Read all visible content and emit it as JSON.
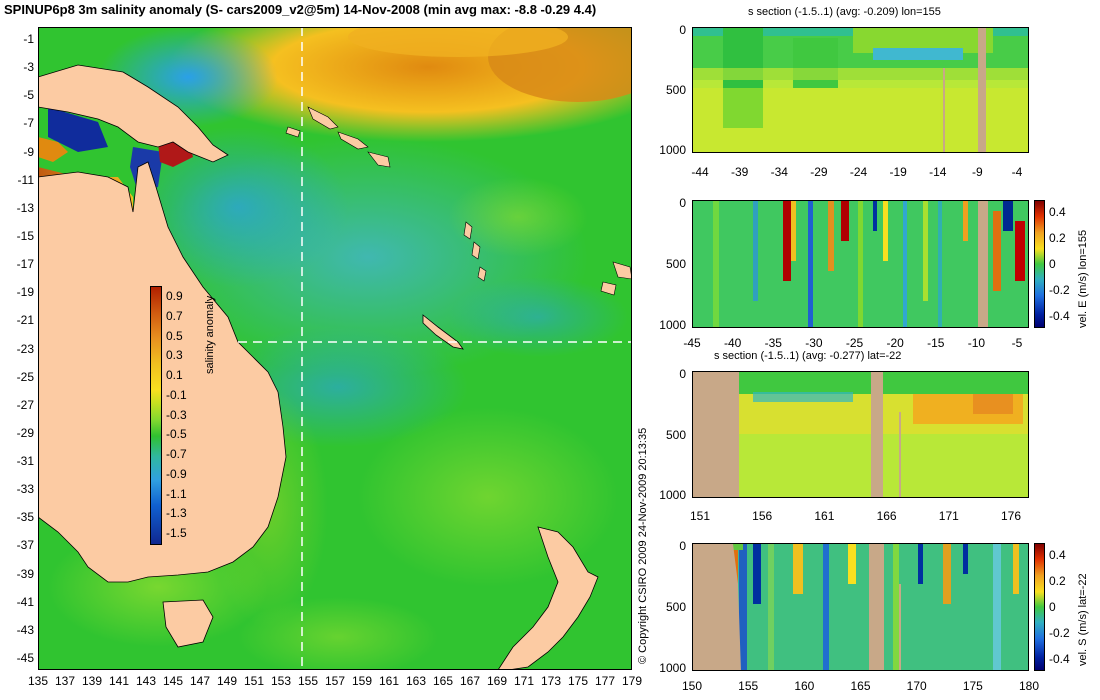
{
  "main": {
    "title": "SPINUP6p8 3m salinity anomaly (S- cars2009_v2@5m) 14-Nov-2008 (min avg max: -8.8 -0.29 4.4)",
    "copyright": "© Copyright CSIRO 2009   24-Nov-2009 20:13:35",
    "lat_ticks": [
      "-1",
      "-3",
      "-5",
      "-7",
      "-9",
      "-11",
      "-13",
      "-15",
      "-17",
      "-19",
      "-21",
      "-23",
      "-25",
      "-27",
      "-29",
      "-31",
      "-33",
      "-35",
      "-37",
      "-39",
      "-41",
      "-43",
      "-45"
    ],
    "lon_ticks": [
      "135",
      "137",
      "139",
      "141",
      "143",
      "145",
      "147",
      "149",
      "151",
      "153",
      "155",
      "157",
      "159",
      "161",
      "163",
      "165",
      "167",
      "169",
      "171",
      "173",
      "175",
      "177",
      "179"
    ],
    "colorbar": {
      "label": "salinity anomaly",
      "ticks": [
        "0.9",
        "0.7",
        "0.5",
        "0.3",
        "0.1",
        "-0.1",
        "-0.3",
        "-0.5",
        "-0.7",
        "-0.9",
        "-1.1",
        "-1.3",
        "-1.5"
      ]
    },
    "section_lines": {
      "lon": 155,
      "lat": -22
    }
  },
  "panels": [
    {
      "id": "s-lon",
      "title": "s section (-1.5..1) (avg: -0.209) lon=155",
      "x_ticks": [
        "-44",
        "-39",
        "-34",
        "-29",
        "-24",
        "-19",
        "-14",
        "-9",
        "-4"
      ],
      "y_ticks": [
        "0",
        "500",
        "1000"
      ],
      "colorbar": null
    },
    {
      "id": "v-lon",
      "title": "",
      "x_ticks": [
        "-45",
        "-40",
        "-35",
        "-30",
        "-25",
        "-20",
        "-15",
        "-10",
        "-5"
      ],
      "y_ticks": [
        "0",
        "500",
        "1000"
      ],
      "colorbar": {
        "label": "vel. E (m/s) lon=155",
        "ticks": [
          "0.4",
          "0.2",
          "0",
          "-0.2",
          "-0.4"
        ]
      }
    },
    {
      "id": "s-lat",
      "title": "s section (-1.5..1) (avg: -0.277) lat=-22",
      "x_ticks": [
        "151",
        "156",
        "161",
        "166",
        "171",
        "176"
      ],
      "y_ticks": [
        "0",
        "500",
        "1000"
      ],
      "colorbar": null
    },
    {
      "id": "v-lat",
      "title": "",
      "x_ticks": [
        "150",
        "155",
        "160",
        "165",
        "170",
        "175",
        "180"
      ],
      "y_ticks": [
        "0",
        "500",
        "1000"
      ],
      "colorbar": {
        "label": "vel. S (m/s) lat=-22",
        "ticks": [
          "0.4",
          "0.2",
          "0",
          "-0.2",
          "-0.4"
        ]
      }
    }
  ],
  "colors": {
    "land": "#fccba3",
    "section_land": "#c8a888",
    "ocean_main": "#2fc62f",
    "anomaly_low": "#1c1c9e",
    "anomaly_high": "#c05a10",
    "velocity_high": "#c00000",
    "velocity_low": "#001890"
  }
}
